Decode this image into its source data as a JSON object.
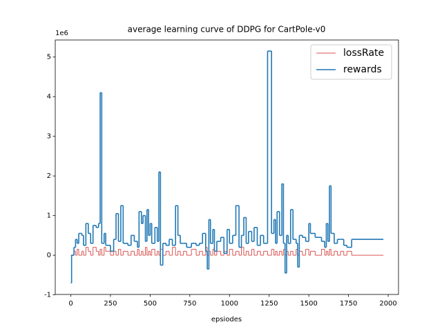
{
  "chart_data": {
    "type": "line",
    "title": "average learning curve of DDPG for CartPole-v0",
    "x_label": "epsiodes",
    "y_offset_label": "1e6",
    "drawstyle": "steps-post",
    "legend": "upper right",
    "xlim": [
      -98,
      2065
    ],
    "xticks": [
      0,
      250,
      500,
      750,
      1000,
      1250,
      1500,
      1750,
      2000
    ],
    "ylim": [
      -0.99,
      5.43
    ],
    "yticks": [
      -1,
      0,
      1,
      2,
      3,
      4,
      5
    ],
    "x": [
      0,
      5,
      20,
      30,
      40,
      50,
      70,
      80,
      95,
      110,
      125,
      140,
      160,
      175,
      185,
      195,
      210,
      220,
      250,
      270,
      285,
      300,
      315,
      330,
      360,
      380,
      400,
      420,
      430,
      445,
      455,
      470,
      480,
      490,
      500,
      510,
      530,
      545,
      555,
      565,
      580,
      600,
      620,
      640,
      660,
      675,
      690,
      710,
      730,
      760,
      790,
      810,
      830,
      850,
      860,
      870,
      880,
      895,
      905,
      920,
      945,
      965,
      985,
      1000,
      1020,
      1040,
      1060,
      1075,
      1090,
      1105,
      1120,
      1140,
      1155,
      1175,
      1195,
      1215,
      1240,
      1265,
      1280,
      1290,
      1300,
      1315,
      1330,
      1340,
      1350,
      1360,
      1370,
      1385,
      1400,
      1420,
      1430,
      1440,
      1460,
      1480,
      1500,
      1510,
      1540,
      1580,
      1600,
      1610,
      1620,
      1630,
      1640,
      1660,
      1680,
      1700,
      1720,
      1740,
      1770,
      1970
    ],
    "series": [
      {
        "name": "lossRate",
        "color": "#d9534f",
        "width": 1,
        "values": [
          0,
          0,
          0.1,
          0,
          0.15,
          0,
          0.1,
          0,
          0.2,
          0.1,
          0,
          0.2,
          0.1,
          0,
          0.15,
          0,
          0.2,
          0.1,
          0,
          0.1,
          0,
          0.15,
          0,
          0.1,
          0,
          0.1,
          0,
          0.15,
          0,
          0.1,
          0,
          0.2,
          0,
          0.1,
          0,
          0.15,
          0,
          0.1,
          0,
          0.15,
          0,
          0.1,
          0,
          0.2,
          0,
          0.1,
          0,
          0.1,
          0,
          0.15,
          0,
          0.1,
          0,
          0.2,
          0,
          0.1,
          0,
          0.15,
          0,
          0.1,
          0,
          0.1,
          0,
          0.15,
          0,
          0.1,
          0,
          0.2,
          0,
          0.1,
          0,
          0.15,
          0,
          0.1,
          0,
          0.1,
          0,
          0.15,
          0,
          0.1,
          0,
          0.1,
          0,
          0.15,
          0,
          0.1,
          0,
          0.1,
          0,
          0.15,
          0,
          0.1,
          0,
          0.15,
          0,
          0.1,
          0,
          0.15,
          0,
          0.1,
          0,
          0.15,
          0,
          0.1,
          0,
          0.1,
          0,
          0.1,
          0,
          0
        ]
      },
      {
        "name": "rewards",
        "color": "#1f77b4",
        "width": 1.6,
        "values": [
          -0.7,
          0,
          0.2,
          0.4,
          0.3,
          0.55,
          0.5,
          0.25,
          0.8,
          0.55,
          0.3,
          0.75,
          0.7,
          0.8,
          4.1,
          0.3,
          0.55,
          0.25,
          0.1,
          0.4,
          1.05,
          0.35,
          1.25,
          0.3,
          0.25,
          0.5,
          0.35,
          0.2,
          1.1,
          0.8,
          1.0,
          0.35,
          1.15,
          0.5,
          0.8,
          0.3,
          0.7,
          0.35,
          2.1,
          -0.25,
          0.3,
          0.25,
          0.4,
          0.25,
          1.25,
          0.5,
          0.3,
          0.3,
          0.2,
          0.3,
          0.25,
          0.3,
          0.55,
          0.1,
          -0.35,
          0.9,
          0.3,
          0.65,
          0.1,
          0.35,
          0.45,
          0.05,
          0.65,
          0.3,
          0.5,
          1.25,
          0.2,
          0.5,
          0.95,
          0.3,
          0.6,
          0.35,
          0.7,
          0.25,
          0.5,
          0.3,
          5.15,
          0.55,
          0.9,
          0.3,
          1.1,
          0.5,
          1.8,
          0.3,
          -0.45,
          0.5,
          0.3,
          1.15,
          0.4,
          0.3,
          -0.3,
          0.5,
          0.45,
          0.35,
          0.8,
          0.55,
          0.45,
          0.35,
          0.2,
          0.8,
          0.35,
          1.75,
          0.55,
          0.3,
          0.4,
          0.4,
          0.25,
          0.2,
          0.4,
          0.4
        ]
      }
    ]
  }
}
